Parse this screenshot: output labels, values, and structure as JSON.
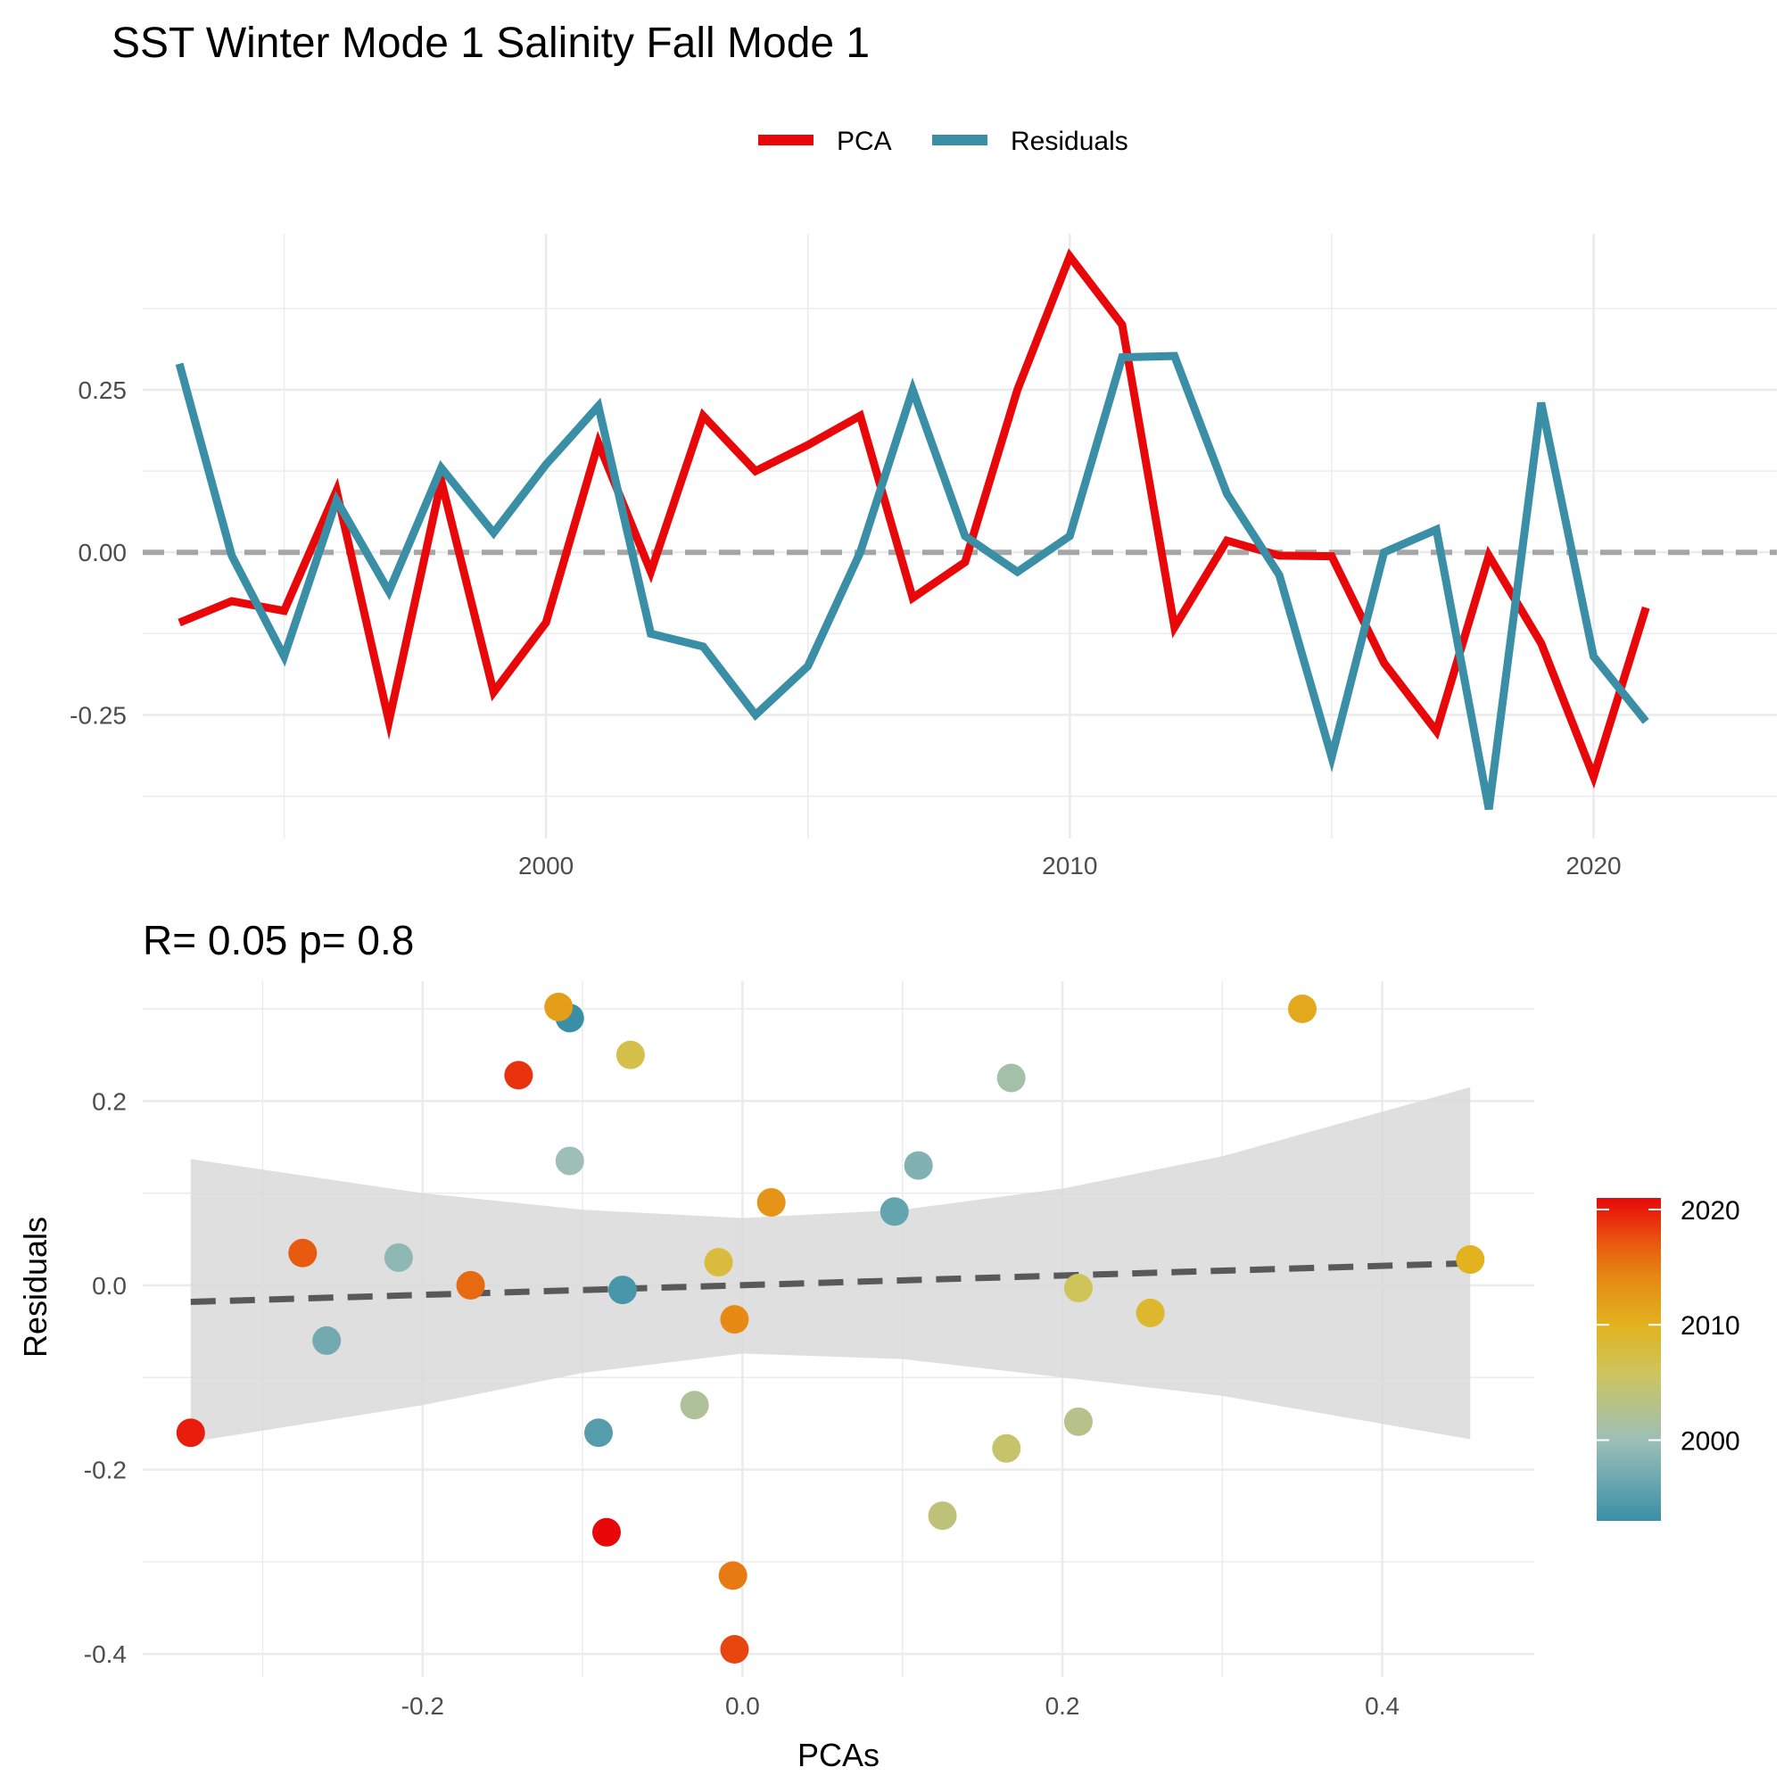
{
  "title": "SST Winter Mode 1 Salinity Fall Mode 1",
  "chart_data": [
    {
      "type": "line",
      "title": "",
      "xlabel": "",
      "ylabel": "",
      "xlim": [
        1992.3,
        2023.5
      ],
      "ylim": [
        -0.44,
        0.49
      ],
      "x_ticks": [
        2000,
        2010,
        2020
      ],
      "x_tick_labels": [
        "2000",
        "2010",
        "2020"
      ],
      "y_ticks": [
        -0.25,
        0,
        0.25
      ],
      "y_tick_labels": [
        "-0.25",
        "0.00",
        "0.25"
      ],
      "grid": true,
      "legend_position": "top",
      "reference_line": {
        "y": 0,
        "style": "dashed",
        "color": "#a6a6a6"
      },
      "x": [
        1993,
        1994,
        1995,
        1996,
        1997,
        1998,
        1999,
        2000,
        2001,
        2002,
        2003,
        2004,
        2005,
        2006,
        2007,
        2008,
        2009,
        2010,
        2011,
        2012,
        2013,
        2014,
        2015,
        2016,
        2017,
        2018,
        2019,
        2020,
        2021
      ],
      "series": [
        {
          "name": "PCA",
          "color": "#e8080a",
          "values": [
            -0.108,
            -0.075,
            -0.09,
            0.095,
            -0.26,
            0.11,
            -0.215,
            -0.108,
            0.168,
            -0.03,
            0.21,
            0.125,
            0.165,
            0.21,
            -0.07,
            -0.015,
            0.25,
            0.455,
            0.35,
            -0.115,
            0.018,
            -0.005,
            -0.006,
            -0.17,
            -0.275,
            -0.005,
            -0.14,
            -0.345,
            -0.085
          ]
        },
        {
          "name": "Residuals",
          "color": "#3a8fa6",
          "values": [
            0.29,
            -0.005,
            -0.16,
            0.08,
            -0.06,
            0.13,
            0.03,
            0.135,
            0.225,
            -0.125,
            -0.145,
            -0.25,
            -0.175,
            0.0,
            0.25,
            0.025,
            -0.03,
            0.025,
            0.3,
            0.302,
            0.09,
            -0.035,
            -0.315,
            0.0,
            0.035,
            -0.395,
            0.23,
            -0.16,
            -0.26
          ]
        }
      ]
    },
    {
      "type": "scatter",
      "title": "R= 0.05  p= 0.8",
      "xlabel": "PCAs",
      "ylabel": "Residuals",
      "xlim": [
        -0.375,
        0.495
      ],
      "ylim": [
        -0.425,
        0.33
      ],
      "x_ticks": [
        -0.2,
        0.0,
        0.2,
        0.4
      ],
      "x_tick_labels": [
        "-0.2",
        "0.0",
        "0.2",
        "0.4"
      ],
      "y_ticks": [
        -0.4,
        -0.2,
        0.0,
        0.2
      ],
      "y_tick_labels": [
        "-0.4",
        "-0.2",
        "0.0",
        "0.2"
      ],
      "grid": true,
      "trend": {
        "x0": -0.345,
        "x1": 0.455,
        "y0": -0.018,
        "y1": 0.024,
        "style": "dashed",
        "color": "#595959"
      },
      "confidence_band": {
        "x": [
          -0.345,
          -0.2,
          -0.1,
          0.0,
          0.1,
          0.2,
          0.3,
          0.455
        ],
        "upper": [
          0.137,
          0.1,
          0.082,
          0.073,
          0.082,
          0.105,
          0.14,
          0.215
        ],
        "lower": [
          -0.17,
          -0.13,
          -0.095,
          -0.074,
          -0.08,
          -0.1,
          -0.12,
          -0.167
        ],
        "color": "#d9d9d9"
      },
      "colorbar": {
        "position": "right",
        "min": 1993,
        "max": 2021,
        "ticks": [
          2000,
          2010,
          2020
        ],
        "tick_labels": [
          "2000",
          "2010",
          "2020"
        ],
        "stops": [
          {
            "year": 1993,
            "color": "#3a8fa6"
          },
          {
            "year": 2000,
            "color": "#9dbfb8"
          },
          {
            "year": 2006,
            "color": "#cfc45a"
          },
          {
            "year": 2010,
            "color": "#e2b21f"
          },
          {
            "year": 2014,
            "color": "#e68a14"
          },
          {
            "year": 2017,
            "color": "#e85a10"
          },
          {
            "year": 2021,
            "color": "#e8080a"
          }
        ]
      },
      "points": [
        {
          "x": -0.108,
          "y": 0.29,
          "year": 1993
        },
        {
          "x": -0.075,
          "y": -0.005,
          "year": 1994
        },
        {
          "x": -0.09,
          "y": -0.16,
          "year": 1995
        },
        {
          "x": 0.095,
          "y": 0.08,
          "year": 1996
        },
        {
          "x": -0.26,
          "y": -0.06,
          "year": 1997
        },
        {
          "x": 0.11,
          "y": 0.13,
          "year": 1998
        },
        {
          "x": -0.215,
          "y": 0.03,
          "year": 1999
        },
        {
          "x": -0.108,
          "y": 0.135,
          "year": 2000
        },
        {
          "x": 0.168,
          "y": 0.225,
          "year": 2001
        },
        {
          "x": -0.03,
          "y": -0.13,
          "year": 2002
        },
        {
          "x": 0.21,
          "y": -0.148,
          "year": 2003
        },
        {
          "x": 0.125,
          "y": -0.25,
          "year": 2004
        },
        {
          "x": 0.165,
          "y": -0.177,
          "year": 2005
        },
        {
          "x": 0.21,
          "y": -0.003,
          "year": 2006
        },
        {
          "x": -0.07,
          "y": 0.25,
          "year": 2007
        },
        {
          "x": -0.015,
          "y": 0.025,
          "year": 2008
        },
        {
          "x": 0.255,
          "y": -0.03,
          "year": 2009
        },
        {
          "x": 0.455,
          "y": 0.028,
          "year": 2010
        },
        {
          "x": 0.35,
          "y": 0.3,
          "year": 2011
        },
        {
          "x": -0.115,
          "y": 0.302,
          "year": 2012
        },
        {
          "x": 0.018,
          "y": 0.09,
          "year": 2013
        },
        {
          "x": -0.005,
          "y": -0.037,
          "year": 2014
        },
        {
          "x": -0.006,
          "y": -0.315,
          "year": 2015
        },
        {
          "x": -0.17,
          "y": 0.0,
          "year": 2016
        },
        {
          "x": -0.275,
          "y": 0.035,
          "year": 2017
        },
        {
          "x": -0.005,
          "y": -0.395,
          "year": 2018
        },
        {
          "x": -0.14,
          "y": 0.228,
          "year": 2019
        },
        {
          "x": -0.345,
          "y": -0.16,
          "year": 2020
        },
        {
          "x": -0.085,
          "y": -0.268,
          "year": 2021
        }
      ]
    }
  ]
}
